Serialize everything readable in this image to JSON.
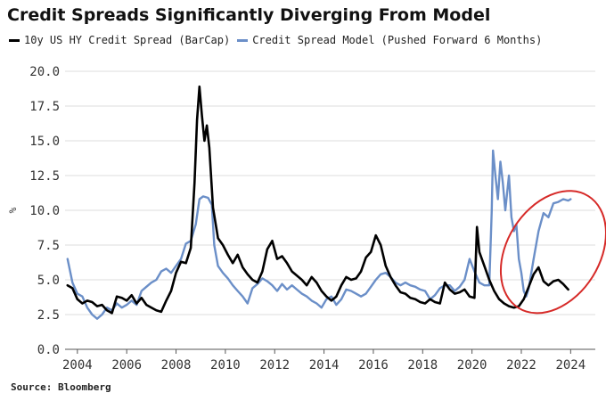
{
  "colors": {
    "series_black": "#000000",
    "series_blue": "#6b8fc8",
    "annotation_red": "#d62a28",
    "grid": "#dddddd",
    "axis": "#555555"
  },
  "footer": {
    "source": "Source: Bloomberg"
  },
  "chart_data": {
    "type": "line",
    "title": "Credit Spreads Significantly Diverging From Model",
    "xlabel": "",
    "ylabel": "%",
    "xlim": [
      2003.5,
      2025
    ],
    "ylim": [
      0,
      20
    ],
    "yticks": [
      "0.0",
      "2.5",
      "5.0",
      "7.5",
      "10.0",
      "12.5",
      "15.0",
      "17.5",
      "20.0"
    ],
    "xticks": [
      "2004",
      "2006",
      "2008",
      "2010",
      "2012",
      "2014",
      "2016",
      "2018",
      "2020",
      "2022",
      "2024"
    ],
    "grid": "horizontal",
    "legend_position": "top",
    "annotation": "red ellipse around 2022-2024",
    "series": [
      {
        "name": "10y US HY Credit Spread (BarCap)",
        "color": "#000000",
        "points": [
          [
            2003.6,
            4.6
          ],
          [
            2003.8,
            4.4
          ],
          [
            2004.0,
            3.6
          ],
          [
            2004.2,
            3.3
          ],
          [
            2004.4,
            3.5
          ],
          [
            2004.6,
            3.4
          ],
          [
            2004.8,
            3.1
          ],
          [
            2005.0,
            3.2
          ],
          [
            2005.2,
            2.8
          ],
          [
            2005.4,
            2.6
          ],
          [
            2005.6,
            3.8
          ],
          [
            2005.8,
            3.7
          ],
          [
            2006.0,
            3.5
          ],
          [
            2006.2,
            3.9
          ],
          [
            2006.4,
            3.3
          ],
          [
            2006.6,
            3.7
          ],
          [
            2006.8,
            3.2
          ],
          [
            2007.0,
            3.0
          ],
          [
            2007.2,
            2.8
          ],
          [
            2007.4,
            2.7
          ],
          [
            2007.6,
            3.5
          ],
          [
            2007.8,
            4.2
          ],
          [
            2008.0,
            5.5
          ],
          [
            2008.2,
            6.3
          ],
          [
            2008.4,
            6.2
          ],
          [
            2008.6,
            7.3
          ],
          [
            2008.75,
            12.0
          ],
          [
            2008.85,
            16.5
          ],
          [
            2008.95,
            18.9
          ],
          [
            2009.05,
            16.8
          ],
          [
            2009.15,
            15.0
          ],
          [
            2009.25,
            16.1
          ],
          [
            2009.35,
            14.5
          ],
          [
            2009.5,
            10.2
          ],
          [
            2009.7,
            8.0
          ],
          [
            2009.9,
            7.5
          ],
          [
            2010.1,
            6.8
          ],
          [
            2010.3,
            6.2
          ],
          [
            2010.5,
            6.8
          ],
          [
            2010.7,
            5.9
          ],
          [
            2010.9,
            5.4
          ],
          [
            2011.1,
            5.0
          ],
          [
            2011.3,
            4.8
          ],
          [
            2011.5,
            5.6
          ],
          [
            2011.7,
            7.2
          ],
          [
            2011.9,
            7.8
          ],
          [
            2012.1,
            6.5
          ],
          [
            2012.3,
            6.7
          ],
          [
            2012.5,
            6.2
          ],
          [
            2012.7,
            5.6
          ],
          [
            2012.9,
            5.3
          ],
          [
            2013.1,
            5.0
          ],
          [
            2013.3,
            4.6
          ],
          [
            2013.5,
            5.2
          ],
          [
            2013.7,
            4.8
          ],
          [
            2013.9,
            4.2
          ],
          [
            2014.1,
            3.8
          ],
          [
            2014.3,
            3.5
          ],
          [
            2014.5,
            3.8
          ],
          [
            2014.7,
            4.6
          ],
          [
            2014.9,
            5.2
          ],
          [
            2015.1,
            5.0
          ],
          [
            2015.3,
            5.1
          ],
          [
            2015.5,
            5.6
          ],
          [
            2015.7,
            6.6
          ],
          [
            2015.9,
            7.0
          ],
          [
            2016.1,
            8.2
          ],
          [
            2016.3,
            7.5
          ],
          [
            2016.5,
            6.0
          ],
          [
            2016.7,
            5.2
          ],
          [
            2016.9,
            4.6
          ],
          [
            2017.1,
            4.1
          ],
          [
            2017.3,
            4.0
          ],
          [
            2017.5,
            3.7
          ],
          [
            2017.7,
            3.6
          ],
          [
            2017.9,
            3.4
          ],
          [
            2018.1,
            3.3
          ],
          [
            2018.3,
            3.6
          ],
          [
            2018.5,
            3.4
          ],
          [
            2018.7,
            3.3
          ],
          [
            2018.9,
            4.8
          ],
          [
            2019.1,
            4.3
          ],
          [
            2019.3,
            4.0
          ],
          [
            2019.5,
            4.1
          ],
          [
            2019.7,
            4.3
          ],
          [
            2019.9,
            3.8
          ],
          [
            2020.1,
            3.7
          ],
          [
            2020.2,
            8.8
          ],
          [
            2020.3,
            7.0
          ],
          [
            2020.5,
            6.0
          ],
          [
            2020.7,
            5.0
          ],
          [
            2020.9,
            4.2
          ],
          [
            2021.1,
            3.6
          ],
          [
            2021.3,
            3.3
          ],
          [
            2021.5,
            3.1
          ],
          [
            2021.7,
            3.0
          ],
          [
            2021.9,
            3.1
          ],
          [
            2022.1,
            3.6
          ],
          [
            2022.3,
            4.5
          ],
          [
            2022.5,
            5.4
          ],
          [
            2022.7,
            5.9
          ],
          [
            2022.9,
            4.9
          ],
          [
            2023.1,
            4.6
          ],
          [
            2023.3,
            4.9
          ],
          [
            2023.5,
            5.0
          ],
          [
            2023.7,
            4.7
          ],
          [
            2023.9,
            4.3
          ]
        ]
      },
      {
        "name": "Credit Spread Model (Pushed Forward 6 Months)",
        "color": "#6b8fc8",
        "points": [
          [
            2003.6,
            6.5
          ],
          [
            2003.8,
            4.8
          ],
          [
            2004.0,
            4.0
          ],
          [
            2004.2,
            3.8
          ],
          [
            2004.4,
            3.0
          ],
          [
            2004.6,
            2.5
          ],
          [
            2004.8,
            2.2
          ],
          [
            2005.0,
            2.5
          ],
          [
            2005.2,
            3.0
          ],
          [
            2005.4,
            2.8
          ],
          [
            2005.6,
            3.3
          ],
          [
            2005.8,
            3.0
          ],
          [
            2006.0,
            3.2
          ],
          [
            2006.2,
            3.5
          ],
          [
            2006.4,
            3.2
          ],
          [
            2006.6,
            4.2
          ],
          [
            2006.8,
            4.5
          ],
          [
            2007.0,
            4.8
          ],
          [
            2007.2,
            5.0
          ],
          [
            2007.4,
            5.6
          ],
          [
            2007.6,
            5.8
          ],
          [
            2007.8,
            5.5
          ],
          [
            2008.0,
            6.0
          ],
          [
            2008.2,
            6.5
          ],
          [
            2008.4,
            7.6
          ],
          [
            2008.6,
            7.8
          ],
          [
            2008.8,
            9.0
          ],
          [
            2008.95,
            10.8
          ],
          [
            2009.1,
            11.0
          ],
          [
            2009.3,
            10.9
          ],
          [
            2009.45,
            10.4
          ],
          [
            2009.55,
            7.5
          ],
          [
            2009.7,
            6.0
          ],
          [
            2009.9,
            5.5
          ],
          [
            2010.1,
            5.1
          ],
          [
            2010.3,
            4.6
          ],
          [
            2010.5,
            4.2
          ],
          [
            2010.7,
            3.8
          ],
          [
            2010.9,
            3.3
          ],
          [
            2011.1,
            4.4
          ],
          [
            2011.3,
            4.7
          ],
          [
            2011.5,
            5.1
          ],
          [
            2011.7,
            4.9
          ],
          [
            2011.9,
            4.6
          ],
          [
            2012.1,
            4.2
          ],
          [
            2012.3,
            4.7
          ],
          [
            2012.5,
            4.3
          ],
          [
            2012.7,
            4.6
          ],
          [
            2012.9,
            4.3
          ],
          [
            2013.1,
            4.0
          ],
          [
            2013.3,
            3.8
          ],
          [
            2013.5,
            3.5
          ],
          [
            2013.7,
            3.3
          ],
          [
            2013.9,
            3.0
          ],
          [
            2014.1,
            3.6
          ],
          [
            2014.3,
            3.8
          ],
          [
            2014.5,
            3.2
          ],
          [
            2014.7,
            3.6
          ],
          [
            2014.9,
            4.3
          ],
          [
            2015.1,
            4.2
          ],
          [
            2015.3,
            4.0
          ],
          [
            2015.5,
            3.8
          ],
          [
            2015.7,
            4.0
          ],
          [
            2015.9,
            4.5
          ],
          [
            2016.1,
            5.0
          ],
          [
            2016.3,
            5.4
          ],
          [
            2016.5,
            5.5
          ],
          [
            2016.7,
            5.2
          ],
          [
            2016.9,
            4.8
          ],
          [
            2017.1,
            4.6
          ],
          [
            2017.3,
            4.8
          ],
          [
            2017.5,
            4.6
          ],
          [
            2017.7,
            4.5
          ],
          [
            2017.9,
            4.3
          ],
          [
            2018.1,
            4.2
          ],
          [
            2018.3,
            3.6
          ],
          [
            2018.5,
            3.9
          ],
          [
            2018.7,
            4.4
          ],
          [
            2018.9,
            4.6
          ],
          [
            2019.1,
            4.6
          ],
          [
            2019.3,
            4.2
          ],
          [
            2019.5,
            4.5
          ],
          [
            2019.7,
            5.0
          ],
          [
            2019.9,
            6.5
          ],
          [
            2020.1,
            5.6
          ],
          [
            2020.3,
            4.8
          ],
          [
            2020.5,
            4.6
          ],
          [
            2020.7,
            4.6
          ],
          [
            2020.8,
            10.0
          ],
          [
            2020.85,
            14.3
          ],
          [
            2020.95,
            12.5
          ],
          [
            2021.05,
            10.8
          ],
          [
            2021.15,
            13.5
          ],
          [
            2021.25,
            12.0
          ],
          [
            2021.35,
            10.0
          ],
          [
            2021.5,
            12.5
          ],
          [
            2021.6,
            9.5
          ],
          [
            2021.7,
            8.5
          ],
          [
            2021.8,
            9.0
          ],
          [
            2021.9,
            6.5
          ],
          [
            2022.0,
            5.5
          ],
          [
            2022.1,
            4.2
          ],
          [
            2022.2,
            3.8
          ],
          [
            2022.3,
            4.4
          ],
          [
            2022.5,
            6.5
          ],
          [
            2022.7,
            8.5
          ],
          [
            2022.9,
            9.8
          ],
          [
            2023.1,
            9.5
          ],
          [
            2023.3,
            10.5
          ],
          [
            2023.5,
            10.6
          ],
          [
            2023.7,
            10.8
          ],
          [
            2023.9,
            10.7
          ],
          [
            2024.0,
            10.8
          ]
        ]
      }
    ]
  }
}
